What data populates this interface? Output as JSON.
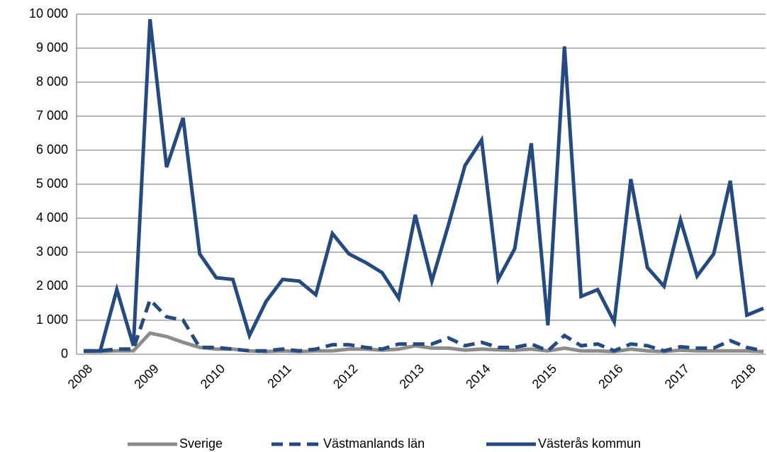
{
  "chart_data": {
    "type": "line",
    "categories": [
      "2008",
      null,
      null,
      null,
      "2009",
      null,
      null,
      null,
      "2010",
      null,
      null,
      null,
      "2011",
      null,
      null,
      null,
      "2012",
      null,
      null,
      null,
      "2013",
      null,
      null,
      null,
      "2014",
      null,
      null,
      null,
      "2015",
      null,
      null,
      null,
      "2016",
      null,
      null,
      null,
      "2017",
      null,
      null,
      null,
      "2018",
      null
    ],
    "series": [
      {
        "name": "Sverige",
        "color": "#8c8c8c",
        "dashed": false,
        "values": [
          80,
          80,
          100,
          100,
          620,
          520,
          350,
          200,
          150,
          150,
          100,
          80,
          100,
          80,
          100,
          100,
          150,
          150,
          120,
          150,
          250,
          180,
          180,
          120,
          150,
          130,
          120,
          150,
          100,
          180,
          100,
          100,
          80,
          150,
          100,
          80,
          120,
          100,
          100,
          100,
          100,
          80
        ]
      },
      {
        "name": "Västmanlands län",
        "color": "#254a7f",
        "dashed": true,
        "values": [
          100,
          100,
          150,
          150,
          1600,
          1100,
          1000,
          200,
          200,
          150,
          100,
          100,
          150,
          100,
          150,
          280,
          280,
          200,
          150,
          300,
          300,
          300,
          480,
          250,
          350,
          200,
          200,
          300,
          100,
          550,
          250,
          300,
          100,
          300,
          250,
          100,
          220,
          180,
          180,
          400,
          200,
          100
        ]
      },
      {
        "name": "Västerås kommun",
        "color": "#254a7f",
        "dashed": false,
        "values": [
          100,
          100,
          1900,
          250,
          9850,
          5500,
          6950,
          2950,
          2250,
          2200,
          550,
          1550,
          2200,
          2150,
          1750,
          3550,
          2950,
          2700,
          2400,
          1650,
          4100,
          2150,
          3800,
          5550,
          6300,
          2200,
          3100,
          6200,
          850,
          9050,
          1700,
          1900,
          950,
          5150,
          2550,
          2000,
          3950,
          2300,
          2950,
          5100,
          1150,
          1350
        ]
      }
    ],
    "ylim": [
      0,
      10000
    ],
    "yticks": [
      0,
      {
        "value": 1000,
        "label": "1 000"
      },
      {
        "value": 2000,
        "label": "2 000"
      },
      {
        "value": 3000,
        "label": "3 000"
      },
      {
        "value": 4000,
        "label": "4 000"
      },
      {
        "value": 5000,
        "label": "5 000"
      },
      {
        "value": 6000,
        "label": "6 000"
      },
      {
        "value": 7000,
        "label": "7 000"
      },
      {
        "value": 8000,
        "label": "8 000"
      },
      {
        "value": 9000,
        "label": "9 000"
      },
      {
        "value": 10000,
        "label": "10 000"
      }
    ],
    "grid": true,
    "legend": "bottom"
  }
}
